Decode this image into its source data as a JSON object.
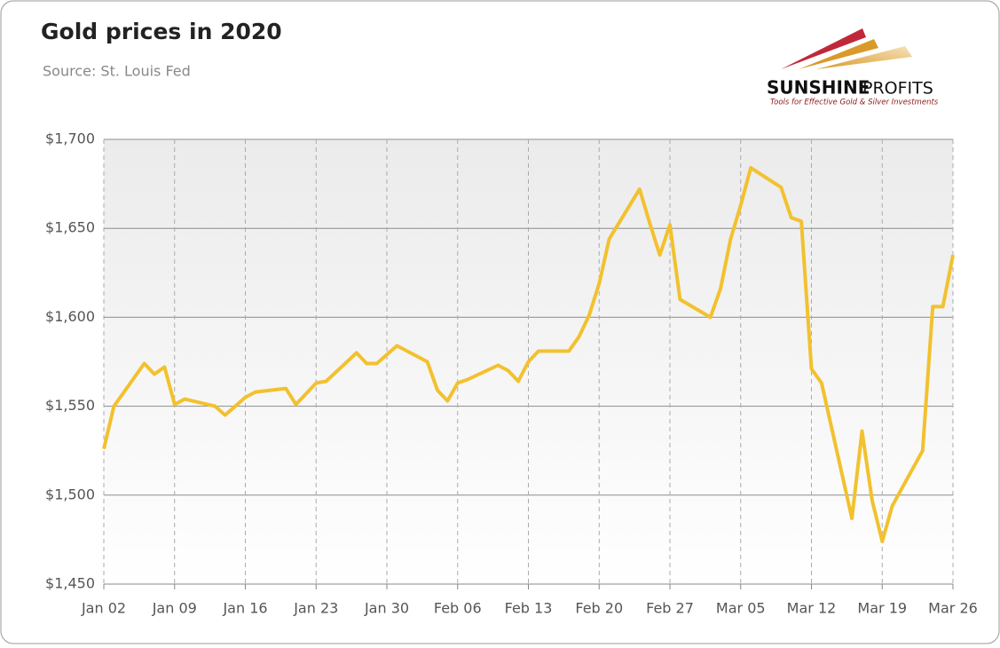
{
  "chart_data": {
    "type": "line",
    "title": "Gold prices in 2020",
    "subtitle": "Source: St. Louis Fed",
    "x": [
      "Jan 02",
      "Jan 03",
      "Jan 06",
      "Jan 07",
      "Jan 08",
      "Jan 09",
      "Jan 10",
      "Jan 13",
      "Jan 14",
      "Jan 15",
      "Jan 16",
      "Jan 17",
      "Jan 20",
      "Jan 21",
      "Jan 22",
      "Jan 23",
      "Jan 24",
      "Jan 27",
      "Jan 28",
      "Jan 29",
      "Jan 30",
      "Jan 31",
      "Feb 03",
      "Feb 04",
      "Feb 05",
      "Feb 06",
      "Feb 07",
      "Feb 10",
      "Feb 11",
      "Feb 12",
      "Feb 13",
      "Feb 14",
      "Feb 17",
      "Feb 18",
      "Feb 19",
      "Feb 20",
      "Feb 21",
      "Feb 24",
      "Feb 25",
      "Feb 26",
      "Feb 27",
      "Feb 28",
      "Mar 02",
      "Mar 03",
      "Mar 04",
      "Mar 05",
      "Mar 06",
      "Mar 09",
      "Mar 10",
      "Mar 11",
      "Mar 12",
      "Mar 13",
      "Mar 16",
      "Mar 17",
      "Mar 18",
      "Mar 19",
      "Mar 20",
      "Mar 23",
      "Mar 24",
      "Mar 25",
      "Mar 26"
    ],
    "series": [
      {
        "name": "Gold price",
        "color": "#f2c12e",
        "values": [
          1526,
          1550,
          1574,
          1568,
          1572,
          1551,
          1554,
          1550,
          1545,
          1550,
          1555,
          1558,
          1560,
          1551,
          1557,
          1563,
          1564,
          1580,
          1574,
          1574,
          1579,
          1584,
          1575,
          1559,
          1553,
          1563,
          1565,
          1573,
          1570,
          1564,
          1575,
          1581,
          1581,
          1589,
          1601,
          1619,
          1644,
          1672,
          1653,
          1635,
          1652,
          1610,
          1600,
          1616,
          1644,
          1663,
          1684,
          1673,
          1656,
          1654,
          1571,
          1563,
          1487,
          1536,
          1497,
          1474,
          1494,
          1525,
          1606,
          1606,
          1635
        ]
      }
    ],
    "xlim": [
      "Jan 02",
      "Mar 26"
    ],
    "xticks": [
      "Jan 02",
      "Jan 09",
      "Jan 16",
      "Jan 23",
      "Jan 30",
      "Feb 06",
      "Feb 13",
      "Feb 20",
      "Feb 27",
      "Mar 05",
      "Mar 12",
      "Mar 19",
      "Mar 26"
    ],
    "ylim": [
      1450,
      1700
    ],
    "yticks": [
      {
        "value": 1450,
        "label": "$1,450"
      },
      {
        "value": 1500,
        "label": "$1,500"
      },
      {
        "value": 1550,
        "label": "$1,550"
      },
      {
        "value": 1600,
        "label": "$1,600"
      },
      {
        "value": 1650,
        "label": "$1,650"
      },
      {
        "value": 1700,
        "label": "$1,700"
      }
    ],
    "grid": true
  },
  "logo": {
    "name_bold": "SUNSHINE",
    "name_light": "PROFITS",
    "tagline": "Tools for Effective Gold & Silver Investments"
  }
}
